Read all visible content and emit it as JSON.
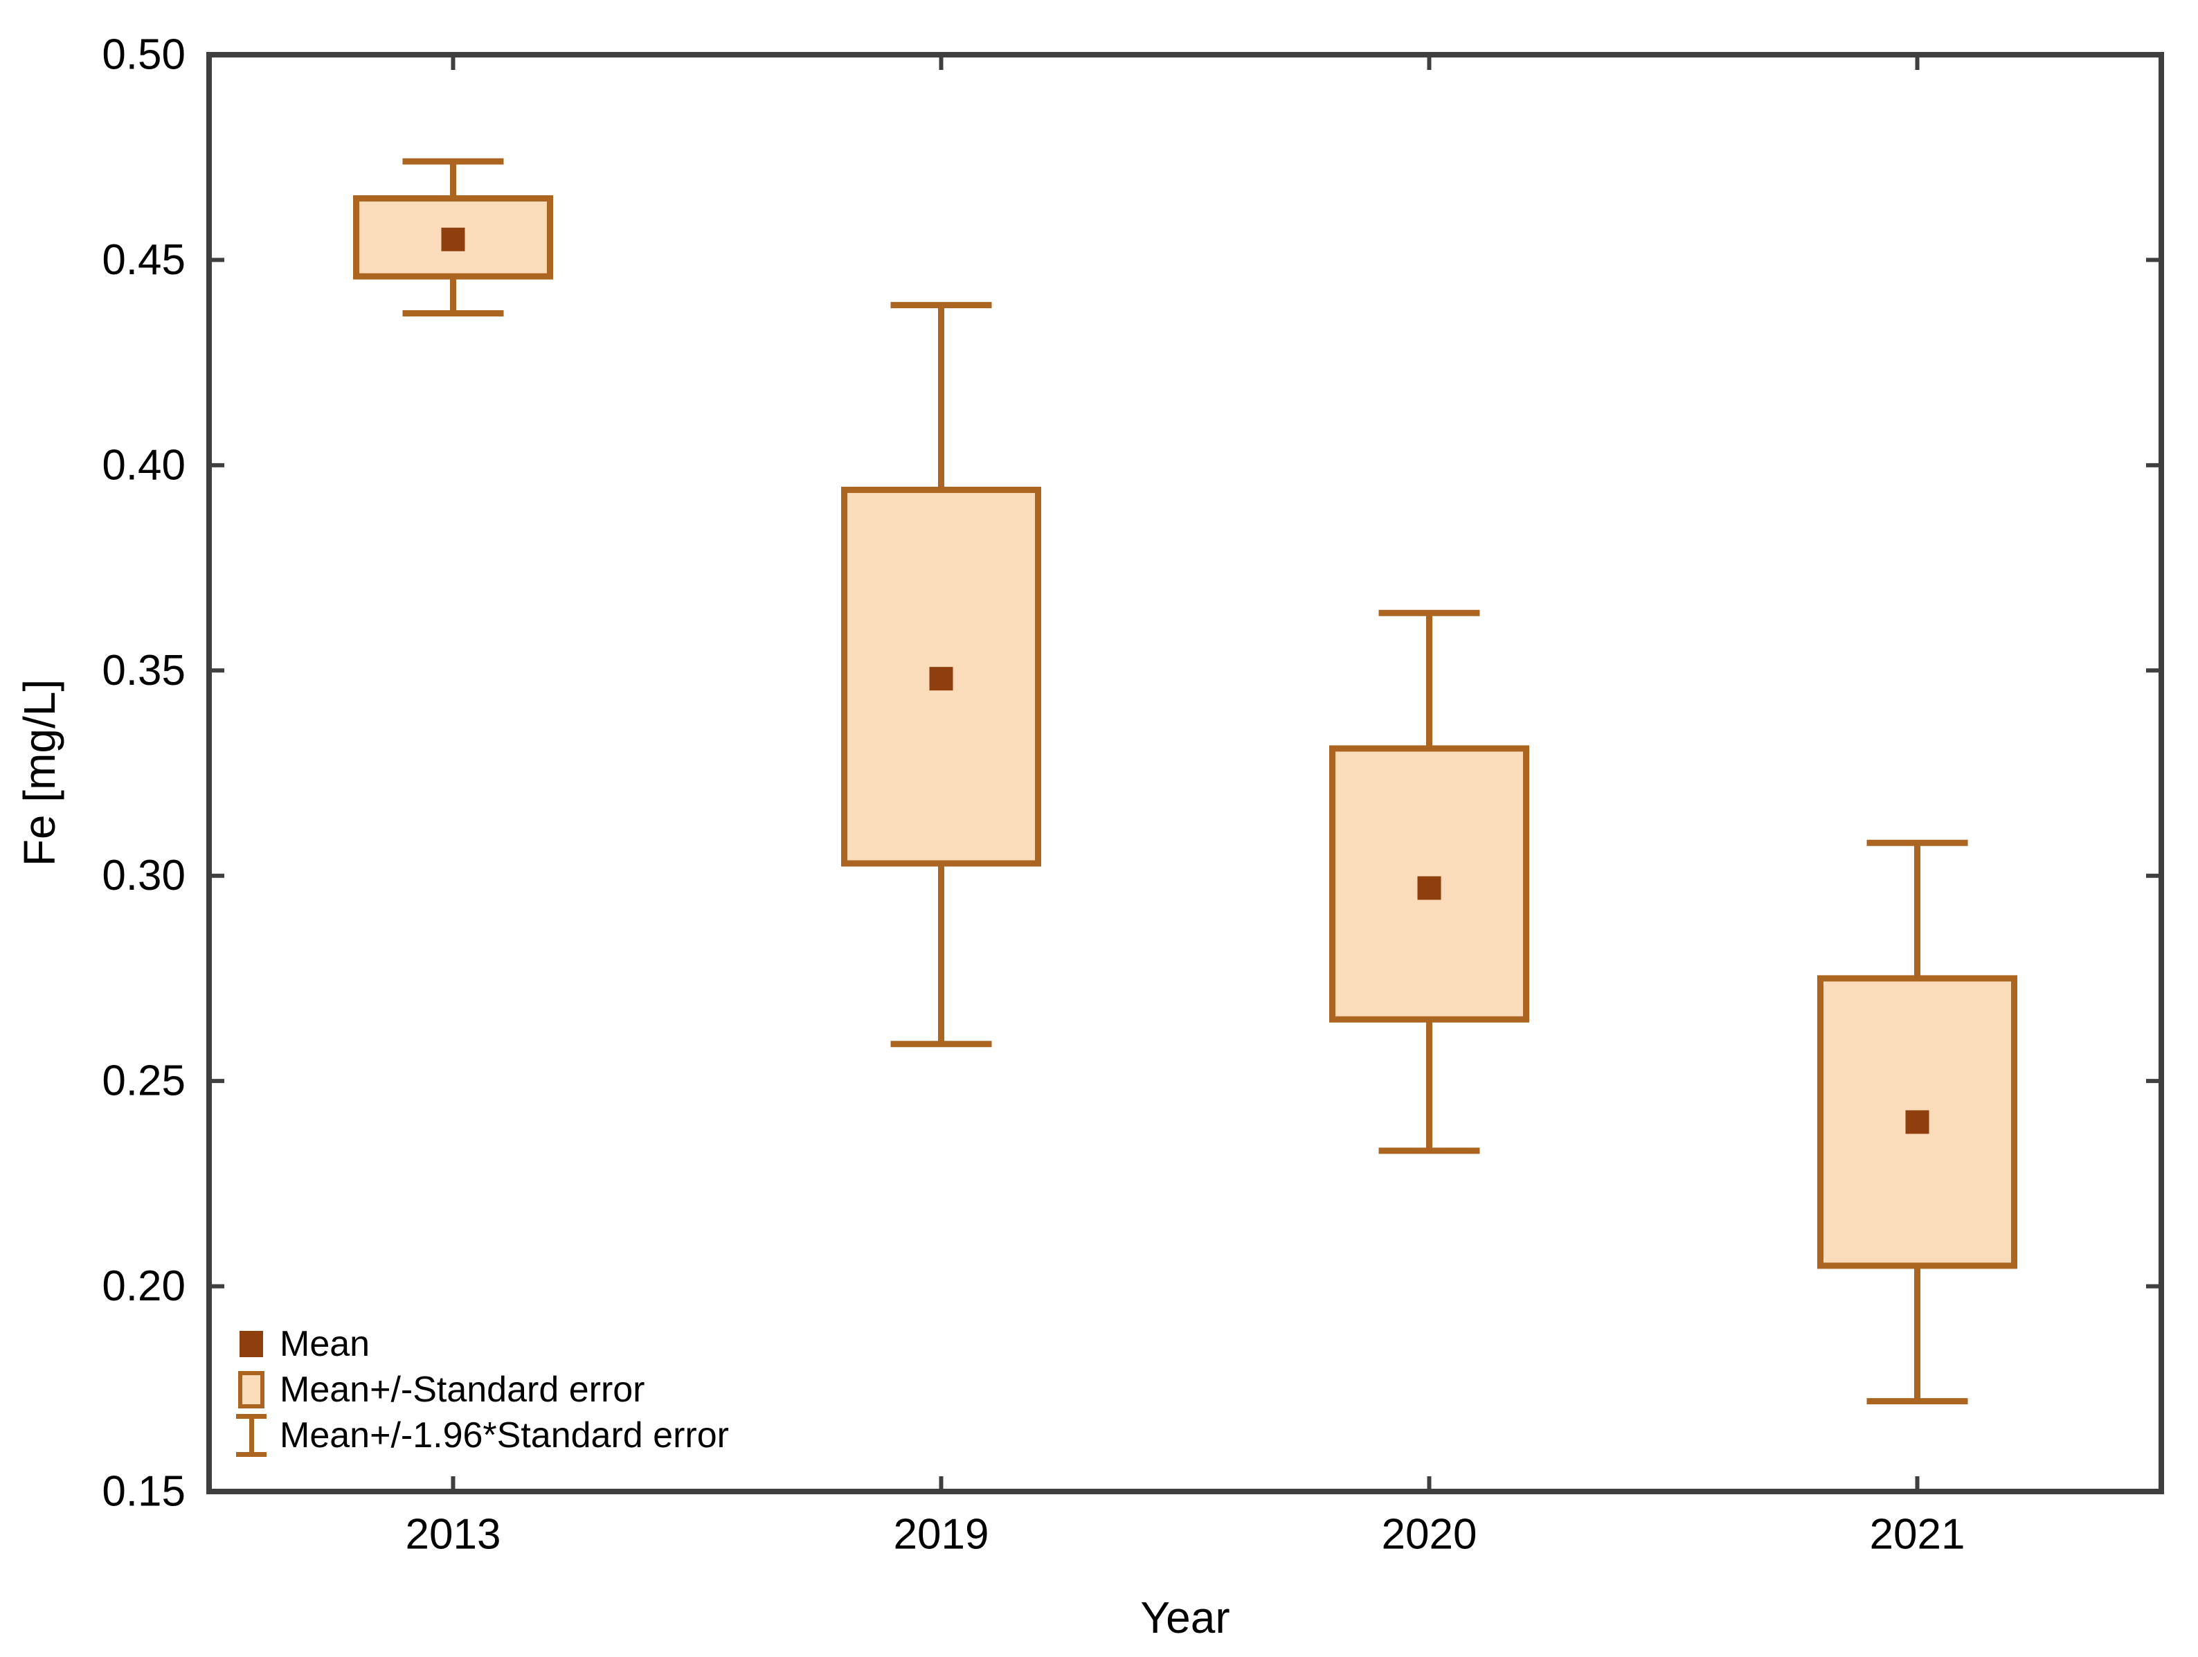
{
  "chart_data": {
    "type": "boxplot",
    "subtype": "mean-whisker-plot",
    "title": "",
    "xlabel": "Year",
    "ylabel": "Fe [mg/L]",
    "grid": "off",
    "legend_position": "bottom-left-inside",
    "y_axis": {
      "min": 0.15,
      "max": 0.5,
      "tick_step": 0.05,
      "tick_labels": [
        "0.50",
        "0.45",
        "0.40",
        "0.35",
        "0.30",
        "0.25",
        "0.20",
        "0.15"
      ]
    },
    "categories": [
      "2013",
      "2019",
      "2020",
      "2021"
    ],
    "series": [
      {
        "category": "2013",
        "mean": 0.455,
        "se_low": 0.446,
        "se_high": 0.465,
        "ci_low": 0.437,
        "ci_high": 0.474
      },
      {
        "category": "2019",
        "mean": 0.348,
        "se_low": 0.303,
        "se_high": 0.394,
        "ci_low": 0.259,
        "ci_high": 0.439
      },
      {
        "category": "2020",
        "mean": 0.297,
        "se_low": 0.265,
        "se_high": 0.331,
        "ci_low": 0.233,
        "ci_high": 0.364
      },
      {
        "category": "2021",
        "mean": 0.24,
        "se_low": 0.205,
        "se_high": 0.275,
        "ci_low": 0.172,
        "ci_high": 0.308
      }
    ],
    "legend": [
      {
        "label": "Mean",
        "marker": "square"
      },
      {
        "label": "Mean+/-Standard error",
        "marker": "box"
      },
      {
        "label": "Mean+/-1.96*Standard error",
        "marker": "whisker"
      }
    ],
    "colors": {
      "box_fill": "#FADCBA",
      "box_stroke": "#AC6520",
      "mean_marker": "#8F3E0E",
      "frame": "#3F3F3F",
      "text": "#000000"
    }
  }
}
